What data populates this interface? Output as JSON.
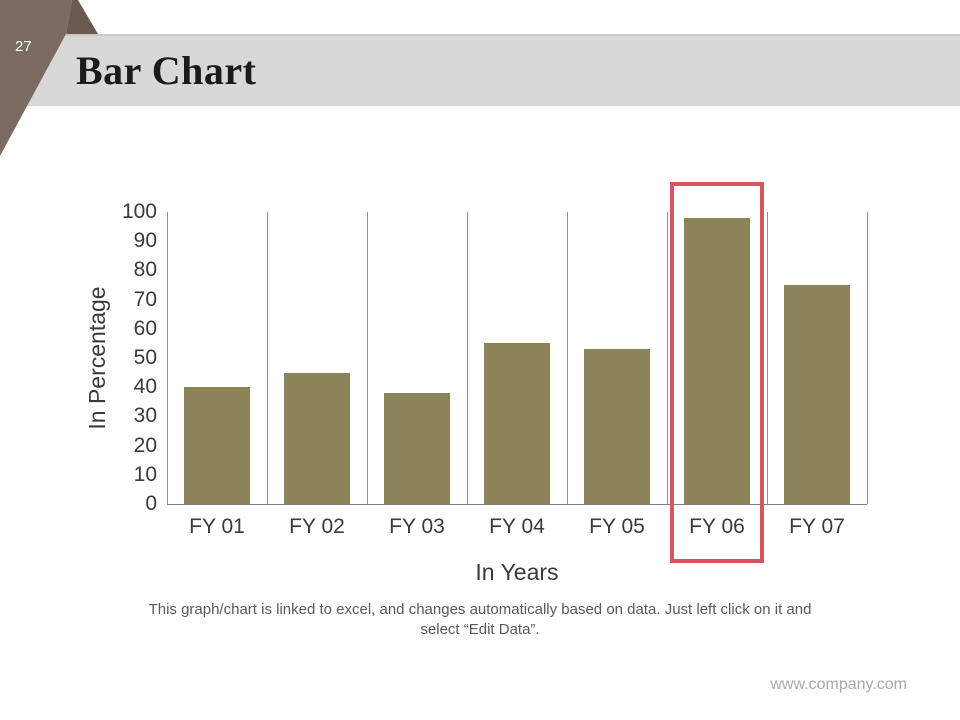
{
  "slide": {
    "page_number": "27",
    "title": "Bar Chart",
    "footer_note_line1": "This graph/chart is linked to excel, and changes automatically based on data. Just left click on it and",
    "footer_note_line2": "select “Edit Data”.",
    "website": "www.company.com"
  },
  "chart_data": {
    "type": "bar",
    "title": "",
    "categories": [
      "FY 01",
      "FY 02",
      "FY 03",
      "FY 04",
      "FY 05",
      "FY 06",
      "FY 07"
    ],
    "values": [
      40,
      45,
      38,
      55,
      53,
      98,
      75
    ],
    "xlabel": "In Years",
    "ylabel": "In Percentage",
    "ylim": [
      0,
      100
    ],
    "ytick_step": 10,
    "legend": "none",
    "gridlines": "vertical-category-separators",
    "highlighted_category": "FY 06",
    "bar_color": "#8c8458",
    "highlight_color": "#d4575f"
  },
  "colors": {
    "band": "#d8d8d8",
    "ribbon_front": "#7b6b60",
    "ribbon_fold": "#6a5b51",
    "axis_text": "#3a3a3a",
    "gridline": "#8f8f8f",
    "footer_text": "#595959",
    "website_text": "#a9a9a9"
  }
}
